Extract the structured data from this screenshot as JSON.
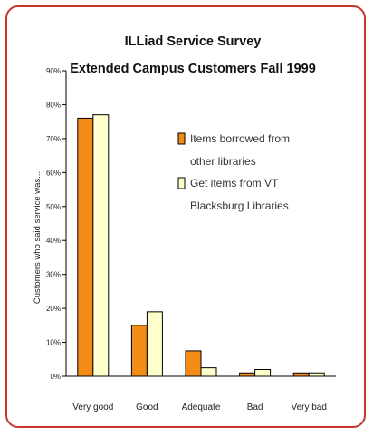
{
  "chart_data": {
    "type": "bar",
    "title": [
      "ILLiad Service Survey",
      "Extended Campus Customers Fall 1999"
    ],
    "ylabel": "Customers who said service was...",
    "xlabel": "",
    "categories": [
      "Very good",
      "Good",
      "Adequate",
      "Bad",
      "Very bad"
    ],
    "yticks": [
      "0%",
      "10%",
      "20%",
      "30%",
      "40%",
      "50%",
      "60%",
      "70%",
      "80%",
      "90%"
    ],
    "ylim": [
      0,
      90
    ],
    "grid": false,
    "legend_position": "right",
    "series": [
      {
        "name_lines": [
          "Items borrowed from",
          "other libraries"
        ],
        "color": "#f28c17",
        "values": [
          76,
          15,
          7.5,
          1,
          1
        ]
      },
      {
        "name_lines": [
          "Get items from VT",
          "Blacksburg Libraries"
        ],
        "color": "#ffffcc",
        "values": [
          77,
          19,
          2.5,
          2,
          1
        ]
      }
    ]
  }
}
